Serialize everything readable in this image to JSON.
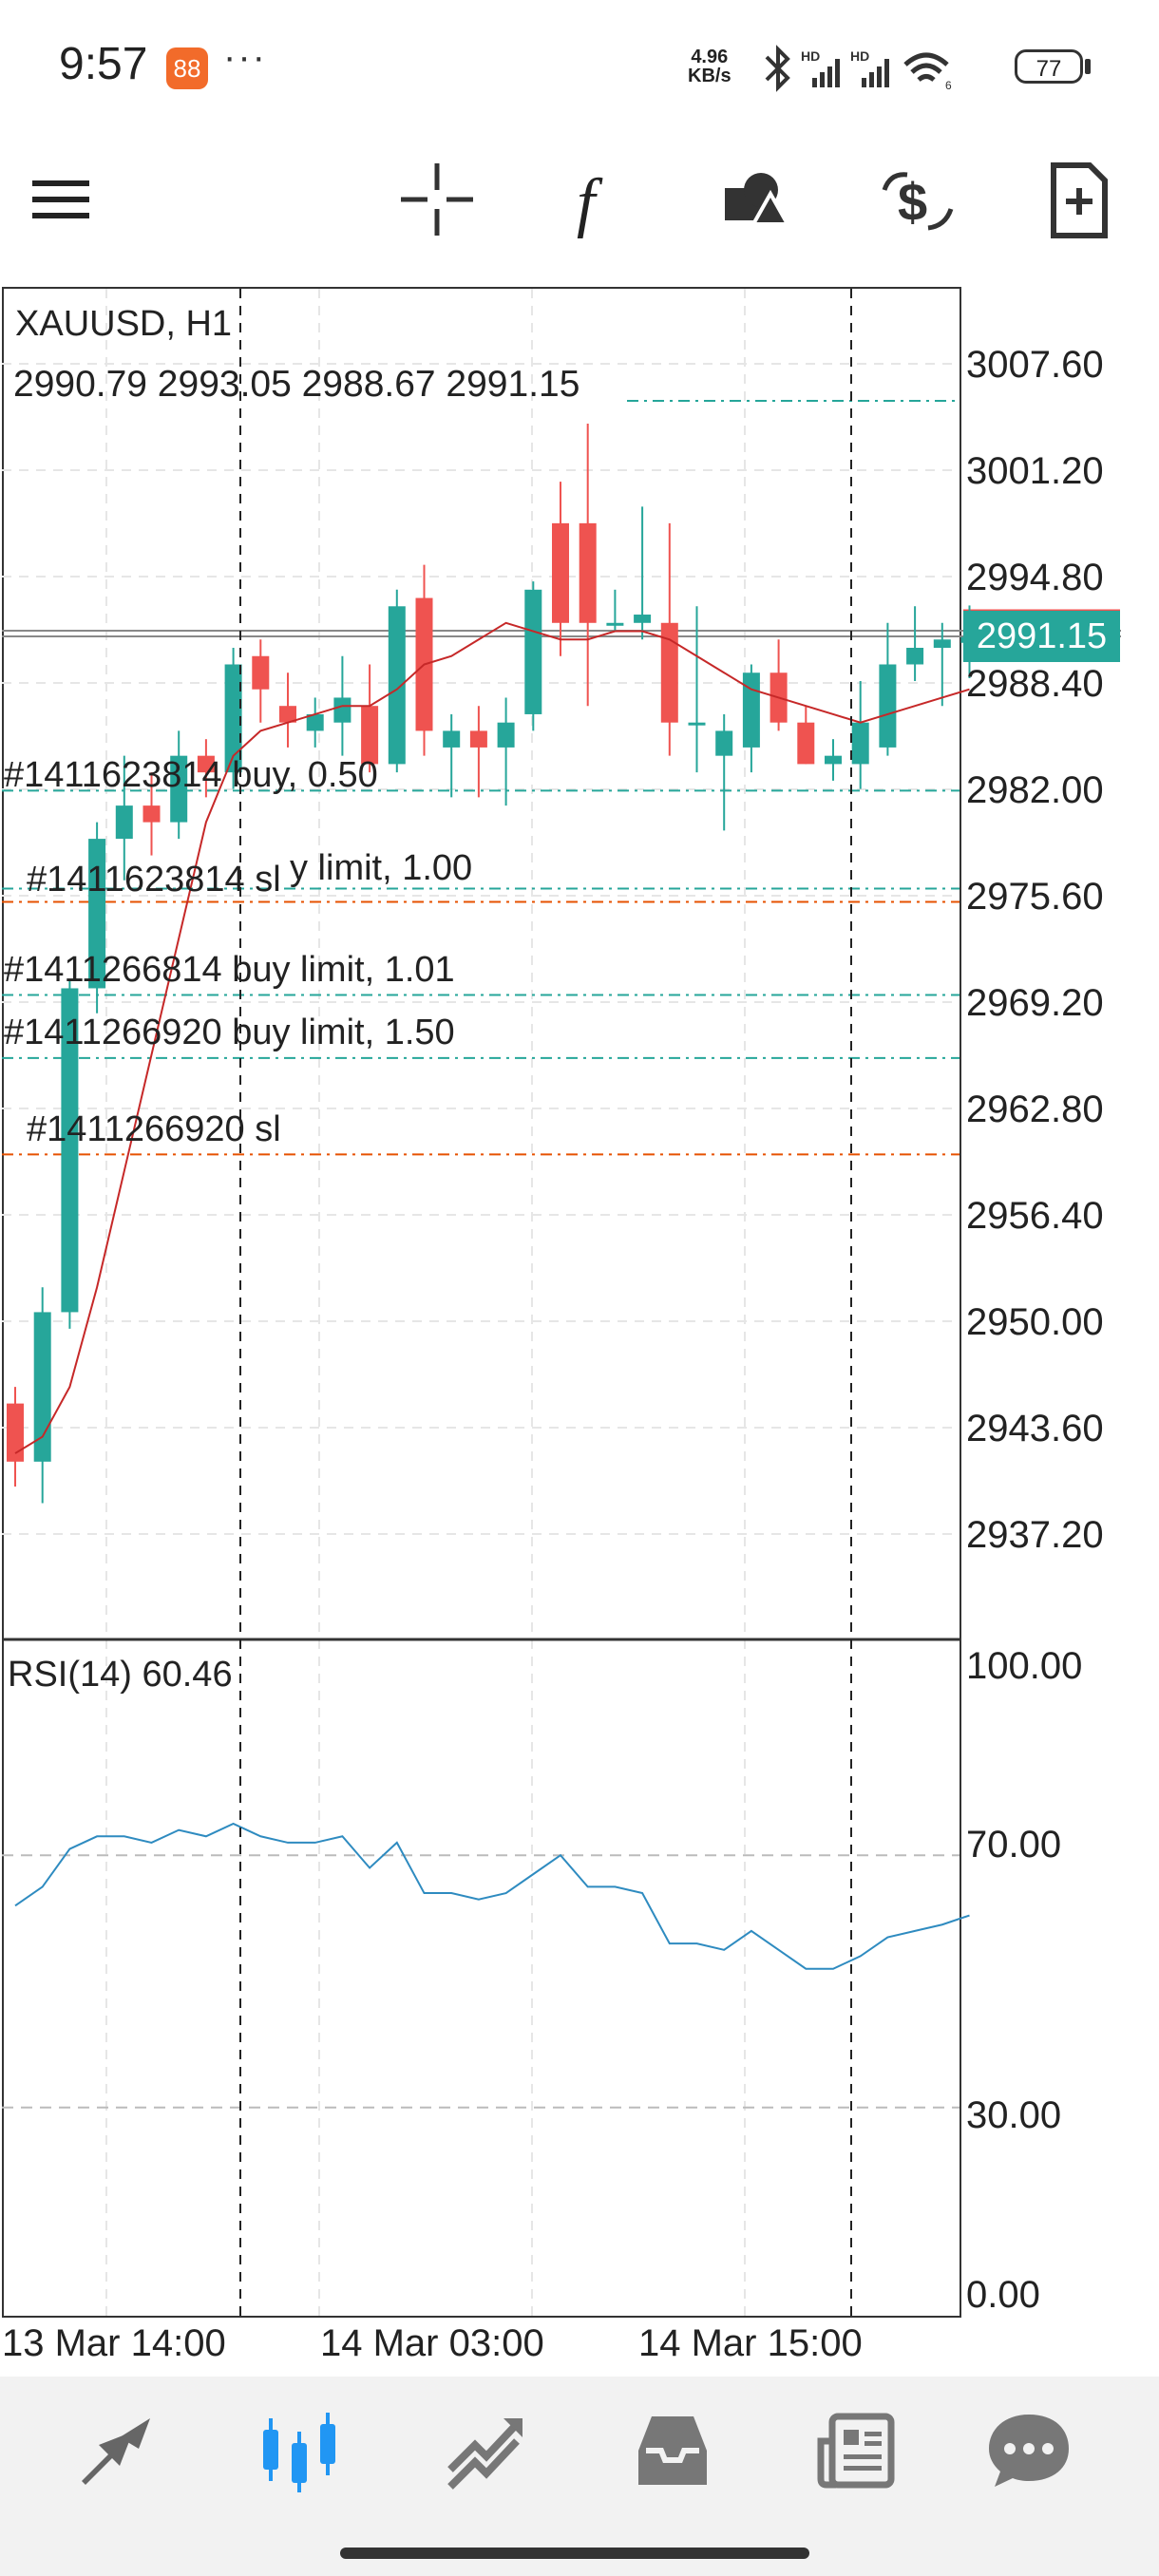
{
  "status_bar": {
    "time": "9:57",
    "app_icon": "88",
    "more": "···",
    "net_speed_value": "4.96",
    "net_speed_unit": "KB/s",
    "battery": "77",
    "icons": [
      "bluetooth-icon",
      "hd-signal-icon",
      "hd-signal-icon",
      "wifi-icon",
      "battery-icon"
    ]
  },
  "toolbar": {
    "items": [
      "menu-icon",
      "crosshair-icon",
      "function-icon",
      "objects-icon",
      "trade-icon",
      "new-order-icon"
    ]
  },
  "chart": {
    "symbol_timeframe": "XAUUSD, H1",
    "ohlc": "2990.79 2993.05 2988.67 2991.15",
    "current_price": "2991.15",
    "price_axis": [
      "3007.60",
      "3001.20",
      "2994.80",
      "2988.40",
      "2982.00",
      "2975.60",
      "2969.20",
      "2962.80",
      "2956.40",
      "2950.00",
      "2943.60",
      "2937.20"
    ],
    "orders": [
      {
        "label": "#1411623814 buy, 0.50",
        "type": "buy",
        "price": 2981.9
      },
      {
        "label": "#1411623814 sl",
        "type": "sl",
        "price": 2975.2
      },
      {
        "label": "y limit, 1.00",
        "type": "buy limit",
        "price": 2976.0
      },
      {
        "label": "#1411266814 buy limit, 1.01",
        "type": "buy limit",
        "price": 2969.6
      },
      {
        "label": "#1411266920 buy limit, 1.50",
        "type": "buy limit",
        "price": 2965.8
      },
      {
        "label": "#1411266920 sl",
        "type": "sl",
        "price": 2960.0
      }
    ],
    "colors": {
      "bull": "#26a69a",
      "bear": "#ef5350",
      "ma": "#c62828",
      "buy_line": "#26a69a",
      "sl_line": "#e65100",
      "rsi": "#2e8bc0"
    },
    "x_axis": [
      "13 Mar 14:00",
      "14 Mar 03:00",
      "14 Mar 15:00"
    ]
  },
  "indicator": {
    "label": "RSI(14) 60.46",
    "axis": [
      "100.00",
      "70.00",
      "30.00",
      "0.00"
    ]
  },
  "chart_data": {
    "type": "line",
    "title": "",
    "candles": [
      {
        "o": 2945.0,
        "h": 2946.0,
        "l": 2940.0,
        "c": 2941.5
      },
      {
        "o": 2941.5,
        "h": 2952.0,
        "l": 2939.0,
        "c": 2950.5
      },
      {
        "o": 2950.5,
        "h": 2970.5,
        "l": 2949.5,
        "c": 2970.0
      },
      {
        "o": 2970.0,
        "h": 2980.0,
        "l": 2968.5,
        "c": 2979.0
      },
      {
        "o": 2979.0,
        "h": 2984.0,
        "l": 2976.5,
        "c": 2981.0
      },
      {
        "o": 2981.0,
        "h": 2983.0,
        "l": 2978.0,
        "c": 2980.0
      },
      {
        "o": 2980.0,
        "h": 2985.5,
        "l": 2979.0,
        "c": 2984.0
      },
      {
        "o": 2984.0,
        "h": 2985.0,
        "l": 2981.5,
        "c": 2983.0
      },
      {
        "o": 2983.0,
        "h": 2990.5,
        "l": 2982.0,
        "c": 2989.5
      },
      {
        "o": 2990.0,
        "h": 2991.0,
        "l": 2986.0,
        "c": 2988.0
      },
      {
        "o": 2987.0,
        "h": 2989.0,
        "l": 2984.5,
        "c": 2986.0
      },
      {
        "o": 2985.5,
        "h": 2987.5,
        "l": 2984.5,
        "c": 2986.5
      },
      {
        "o": 2986.0,
        "h": 2990.0,
        "l": 2984.0,
        "c": 2987.5
      },
      {
        "o": 2987.0,
        "h": 2989.5,
        "l": 2983.0,
        "c": 2983.5
      },
      {
        "o": 2983.5,
        "h": 2994.0,
        "l": 2983.0,
        "c": 2993.0
      },
      {
        "o": 2993.5,
        "h": 2995.5,
        "l": 2984.0,
        "c": 2985.5
      },
      {
        "o": 2984.5,
        "h": 2986.5,
        "l": 2981.5,
        "c": 2985.5
      },
      {
        "o": 2985.5,
        "h": 2987.0,
        "l": 2981.5,
        "c": 2984.5
      },
      {
        "o": 2984.5,
        "h": 2987.5,
        "l": 2981.0,
        "c": 2986.0
      },
      {
        "o": 2986.5,
        "h": 2994.5,
        "l": 2985.5,
        "c": 2994.0
      },
      {
        "o": 2998.0,
        "h": 3000.5,
        "l": 2990.0,
        "c": 2992.0
      },
      {
        "o": 2998.0,
        "h": 3004.0,
        "l": 2987.0,
        "c": 2992.0
      },
      {
        "o": 2992.0,
        "h": 2994.0,
        "l": 2991.5,
        "c": 2992.0
      },
      {
        "o": 2992.0,
        "h": 2999.0,
        "l": 2991.0,
        "c": 2992.5
      },
      {
        "o": 2992.0,
        "h": 2998.0,
        "l": 2984.0,
        "c": 2986.0
      },
      {
        "o": 2986.0,
        "h": 2993.0,
        "l": 2983.0,
        "c": 2986.0
      },
      {
        "o": 2984.0,
        "h": 2986.5,
        "l": 2979.5,
        "c": 2985.5
      },
      {
        "o": 2984.5,
        "h": 2989.5,
        "l": 2983.0,
        "c": 2989.0
      },
      {
        "o": 2989.0,
        "h": 2991.0,
        "l": 2985.5,
        "c": 2986.0
      },
      {
        "o": 2986.0,
        "h": 2987.0,
        "l": 2983.5,
        "c": 2983.5
      },
      {
        "o": 2983.5,
        "h": 2985.0,
        "l": 2982.5,
        "c": 2984.0
      },
      {
        "o": 2983.5,
        "h": 2988.5,
        "l": 2982.0,
        "c": 2986.0
      },
      {
        "o": 2984.5,
        "h": 2992.0,
        "l": 2984.0,
        "c": 2989.5
      },
      {
        "o": 2989.5,
        "h": 2993.0,
        "l": 2988.5,
        "c": 2990.5
      },
      {
        "o": 2990.5,
        "h": 2992.0,
        "l": 2987.0,
        "c": 2991.0
      },
      {
        "o": 2990.8,
        "h": 2993.05,
        "l": 2988.67,
        "c": 2991.15
      }
    ],
    "ma": [
      2942.0,
      2943.0,
      2946.0,
      2952.0,
      2959.0,
      2966.0,
      2973.0,
      2980.0,
      2984.0,
      2985.5,
      2986.0,
      2986.5,
      2987.0,
      2987.0,
      2988.0,
      2989.5,
      2990.0,
      2991.0,
      2992.0,
      2991.5,
      2991.0,
      2991.0,
      2991.5,
      2991.5,
      2991.0,
      2990.0,
      2989.0,
      2988.0,
      2987.5,
      2987.0,
      2986.5,
      2986.0,
      2986.5,
      2987.0,
      2987.5,
      2988.0
    ],
    "rsi": [
      62,
      65,
      71,
      73,
      73,
      72,
      74,
      73,
      75,
      73,
      72,
      72,
      73,
      68,
      72,
      64,
      64,
      63,
      64,
      67,
      70,
      65,
      65,
      64,
      56,
      56,
      55,
      58,
      55,
      52,
      52,
      54,
      57,
      58,
      59,
      60.46
    ],
    "ylim": [
      2931,
      3011
    ],
    "rsi_ylim": [
      0,
      100
    ]
  }
}
